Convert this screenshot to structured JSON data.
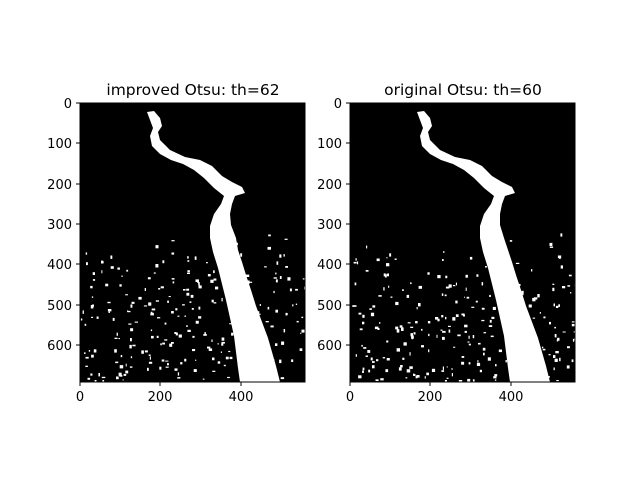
{
  "figure": {
    "background": "#ffffff",
    "panels": [
      {
        "id": "left",
        "title": "improved Otsu: th=62",
        "threshold": 62,
        "x_ticks": [
          "0",
          "200",
          "400"
        ],
        "y_ticks": [
          "0",
          "100",
          "200",
          "300",
          "400",
          "500",
          "600"
        ]
      },
      {
        "id": "right",
        "title": "original Otsu: th=60",
        "threshold": 60,
        "x_ticks": [
          "0",
          "200",
          "400"
        ],
        "y_ticks": [
          "0",
          "100",
          "200",
          "300",
          "400",
          "500",
          "600"
        ]
      }
    ],
    "image_extent": {
      "x_max": 560,
      "y_max": 690
    },
    "colors": {
      "foreground": "#ffffff",
      "background": "#000000"
    }
  }
}
